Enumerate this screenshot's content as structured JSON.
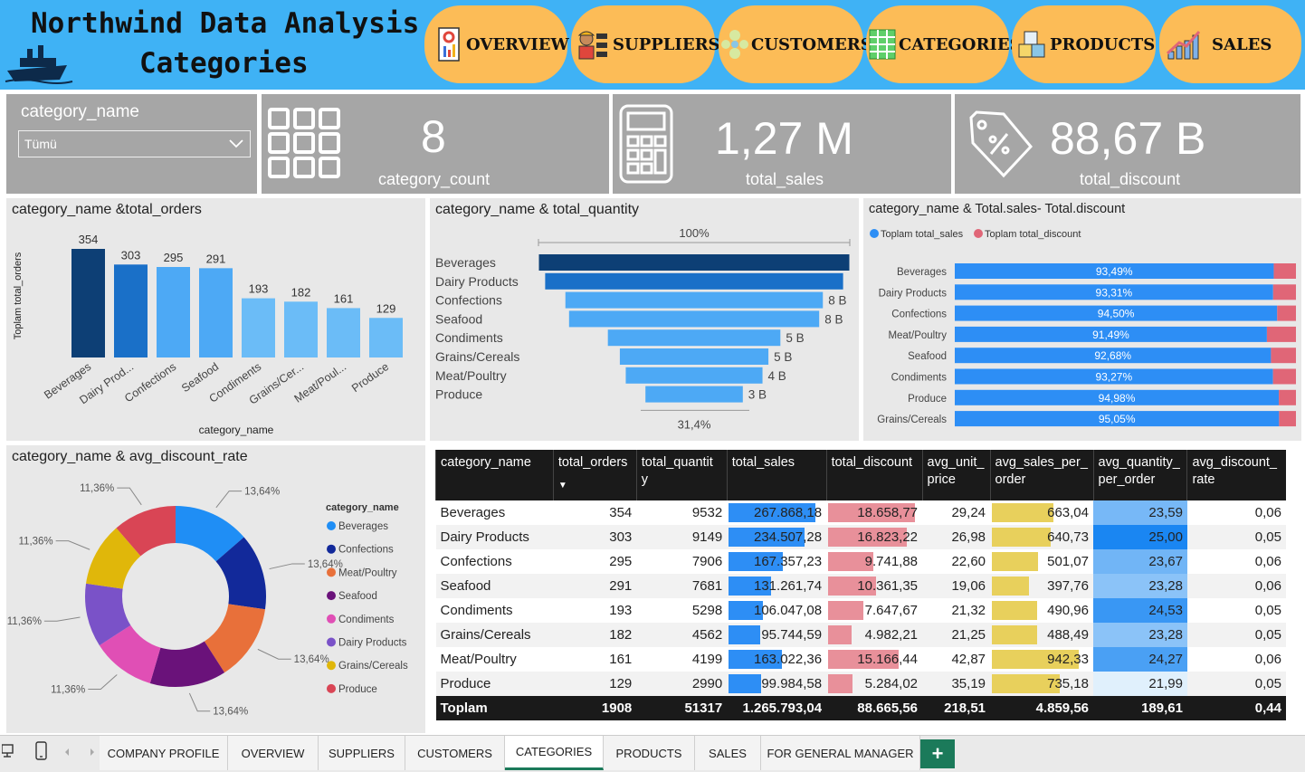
{
  "header": {
    "title_line1": "Northwind Data Analysis",
    "title_line2": "Categories",
    "nav": [
      {
        "label": "OVERVIEW",
        "icon": "report-icon"
      },
      {
        "label": "SUPPLIERS",
        "icon": "workers-icon"
      },
      {
        "label": "CUSTOMERS",
        "icon": "people-icon"
      },
      {
        "label": "CATEGORIES",
        "icon": "grid-table-icon"
      },
      {
        "label": "PRODUCTS",
        "icon": "boxes-icon"
      },
      {
        "label": "SALES",
        "icon": "growth-chart-icon"
      }
    ]
  },
  "slicer": {
    "title": "category_name",
    "selected": "Tümü"
  },
  "kpis": {
    "category_count": {
      "value": "8",
      "label": "category_count",
      "icon": "grid-icon"
    },
    "total_sales": {
      "value": "1,27 M",
      "label": "total_sales",
      "icon": "calculator-icon"
    },
    "total_discount": {
      "value": "88,67 B",
      "label": "total_discount",
      "icon": "discount-tag-icon"
    }
  },
  "colors": {
    "header_bg": "#3fb2f5",
    "nav_button": "#fcbc57",
    "kpi_bg": "#a6a6a6",
    "panel_bg": "#e8e8e8",
    "bar_dark": "#0d3f75",
    "bar_mid": "#1a70c8",
    "bar_light": "#4da9f5",
    "sales_blue": "#2d8ef5",
    "discount_red": "#e06677",
    "unit_yellow": "#e8d05c",
    "tab_green": "#1b7a5a"
  },
  "chart_data": [
    {
      "type": "bar",
      "title": "category_name &total_orders",
      "xlabel": "category_name",
      "ylabel": "Toplam total_orders",
      "categories": [
        "Beverages",
        "Dairy Prod...",
        "Confections",
        "Seafood",
        "Condiments",
        "Grains/Cer...",
        "Meat/Poul...",
        "Produce"
      ],
      "values": [
        354,
        303,
        295,
        291,
        193,
        182,
        161,
        129
      ],
      "ylim": [
        0,
        400
      ]
    },
    {
      "type": "bar",
      "subtype": "funnel",
      "title": "category_name & total_quantity",
      "top_label": "100%",
      "bottom_label": "31,4%",
      "categories": [
        "Beverages",
        "Dairy Products",
        "Confections",
        "Seafood",
        "Condiments",
        "Grains/Cereals",
        "Meat/Poultry",
        "Produce"
      ],
      "values": [
        9532,
        9149,
        7906,
        7681,
        5298,
        4562,
        4199,
        2990
      ],
      "data_labels": [
        "",
        "",
        "8 B",
        "8 B",
        "5 B",
        "5 B",
        "4 B",
        "3 B"
      ]
    },
    {
      "type": "bar",
      "subtype": "100%-stacked-horizontal",
      "title": "category_name & Total.sales- Total.discount",
      "legend_position": "top-left",
      "series": [
        {
          "name": "Toplam total_sales",
          "color": "#2d8ef5"
        },
        {
          "name": "Toplam total_discount",
          "color": "#e06677"
        }
      ],
      "categories": [
        "Beverages",
        "Dairy Products",
        "Confections",
        "Meat/Poultry",
        "Seafood",
        "Condiments",
        "Produce",
        "Grains/Cereals"
      ],
      "sales_share_pct": [
        93.49,
        93.31,
        94.5,
        91.49,
        92.68,
        93.27,
        94.98,
        95.05
      ],
      "data_labels": [
        "93,49%",
        "93,31%",
        "94,50%",
        "91,49%",
        "92,68%",
        "93,27%",
        "94,98%",
        "95,05%"
      ]
    },
    {
      "type": "pie",
      "subtype": "donut",
      "title": "category_name & avg_discount_rate",
      "legend_title": "category_name",
      "legend_position": "right",
      "slices": [
        {
          "name": "Beverages",
          "value": 0.06,
          "color": "#1f8ef5",
          "label": "13,64%"
        },
        {
          "name": "Confections",
          "value": 0.06,
          "color": "#12299a",
          "label": "13,64%"
        },
        {
          "name": "Meat/Poultry",
          "value": 0.06,
          "color": "#e8703a",
          "label": "13,64%"
        },
        {
          "name": "Seafood",
          "value": 0.06,
          "color": "#6a127a",
          "label": "13,64%"
        },
        {
          "name": "Condiments",
          "value": 0.05,
          "color": "#e04fb5",
          "label": "11,36%"
        },
        {
          "name": "Dairy Products",
          "value": 0.05,
          "color": "#7a52c8",
          "label": "11,36%"
        },
        {
          "name": "Grains/Cereals",
          "value": 0.05,
          "color": "#e0b70a",
          "label": "11,36%"
        },
        {
          "name": "Produce",
          "value": 0.05,
          "color": "#d94555",
          "label": "11,36%"
        }
      ]
    }
  ],
  "table": {
    "headers": [
      "category_name",
      "total_orders",
      "total_quantity",
      "total_sales",
      "total_discount",
      "avg_unit_price",
      "avg_sales_per_order",
      "avg_quantity_per_order",
      "avg_discount_rate"
    ],
    "header_display": [
      "category_name",
      "total_orders",
      "total_quantit y",
      "total_sales",
      "total_discount",
      "avg_unit_ price",
      "avg_sales_per_ order",
      "avg_quantity_ per_order",
      "avg_discount_ rate"
    ],
    "sort_indicator": "▼",
    "rows": [
      {
        "name": "Beverages",
        "orders": "354",
        "qty": "9532",
        "sales": "267.868,18",
        "sales_v": 267868.18,
        "disc": "18.658,77",
        "disc_v": 18658.77,
        "unit": "29,24",
        "spo": "663,04",
        "spo_v": 663.04,
        "qpo": "23,59",
        "qpo_v": 23.59,
        "rate": "0,06"
      },
      {
        "name": "Dairy Products",
        "orders": "303",
        "qty": "9149",
        "sales": "234.507,28",
        "sales_v": 234507.28,
        "disc": "16.823,22",
        "disc_v": 16823.22,
        "unit": "26,98",
        "spo": "640,73",
        "spo_v": 640.73,
        "qpo": "25,00",
        "qpo_v": 25.0,
        "rate": "0,05"
      },
      {
        "name": "Confections",
        "orders": "295",
        "qty": "7906",
        "sales": "167.357,23",
        "sales_v": 167357.23,
        "disc": "9.741,88",
        "disc_v": 9741.88,
        "unit": "22,60",
        "spo": "501,07",
        "spo_v": 501.07,
        "qpo": "23,67",
        "qpo_v": 23.67,
        "rate": "0,06"
      },
      {
        "name": "Seafood",
        "orders": "291",
        "qty": "7681",
        "sales": "131.261,74",
        "sales_v": 131261.74,
        "disc": "10.361,35",
        "disc_v": 10361.35,
        "unit": "19,06",
        "spo": "397,76",
        "spo_v": 397.76,
        "qpo": "23,28",
        "qpo_v": 23.28,
        "rate": "0,06"
      },
      {
        "name": "Condiments",
        "orders": "193",
        "qty": "5298",
        "sales": "106.047,08",
        "sales_v": 106047.08,
        "disc": "7.647,67",
        "disc_v": 7647.67,
        "unit": "21,32",
        "spo": "490,96",
        "spo_v": 490.96,
        "qpo": "24,53",
        "qpo_v": 24.53,
        "rate": "0,05"
      },
      {
        "name": "Grains/Cereals",
        "orders": "182",
        "qty": "4562",
        "sales": "95.744,59",
        "sales_v": 95744.59,
        "disc": "4.982,21",
        "disc_v": 4982.21,
        "unit": "21,25",
        "spo": "488,49",
        "spo_v": 488.49,
        "qpo": "23,28",
        "qpo_v": 23.28,
        "rate": "0,05"
      },
      {
        "name": "Meat/Poultry",
        "orders": "161",
        "qty": "4199",
        "sales": "163.022,36",
        "sales_v": 163022.36,
        "disc": "15.166,44",
        "disc_v": 15166.44,
        "unit": "42,87",
        "spo": "942,33",
        "spo_v": 942.33,
        "qpo": "24,27",
        "qpo_v": 24.27,
        "rate": "0,06"
      },
      {
        "name": "Produce",
        "orders": "129",
        "qty": "2990",
        "sales": "99.984,58",
        "sales_v": 99984.58,
        "disc": "5.284,02",
        "disc_v": 5284.02,
        "unit": "35,19",
        "spo": "735,18",
        "spo_v": 735.18,
        "qpo": "21,99",
        "qpo_v": 21.99,
        "rate": "0,05"
      }
    ],
    "total": {
      "name": "Toplam",
      "orders": "1908",
      "qty": "51317",
      "sales": "1.265.793,04",
      "disc": "88.665,56",
      "unit": "218,51",
      "spo": "4.859,56",
      "qpo": "189,61",
      "rate": "0,44"
    }
  },
  "tabs": [
    {
      "label": "COMPANY PROFILE",
      "active": false
    },
    {
      "label": "OVERVIEW",
      "active": false
    },
    {
      "label": "SUPPLIERS",
      "active": false
    },
    {
      "label": "CUSTOMERS",
      "active": false
    },
    {
      "label": "CATEGORIES",
      "active": true
    },
    {
      "label": "PRODUCTS",
      "active": false
    },
    {
      "label": "SALES",
      "active": false
    },
    {
      "label": "FOR GENERAL MANAGER",
      "active": false
    }
  ],
  "add_tab_label": "+"
}
